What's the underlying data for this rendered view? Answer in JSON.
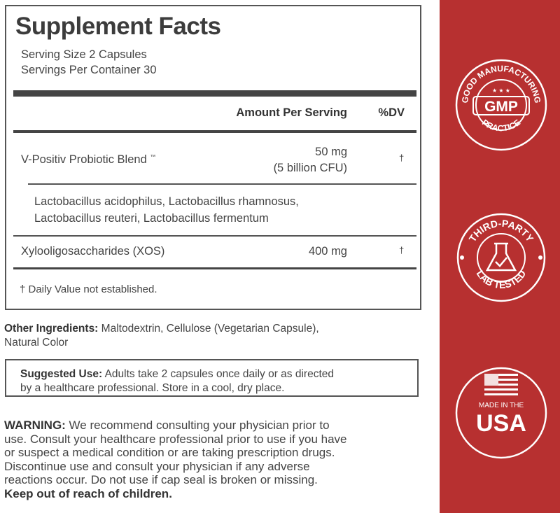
{
  "facts": {
    "title": "Supplement Facts",
    "serving_size": "Serving Size 2 Capsules",
    "servings_per_container": "Servings Per Container 30",
    "col_amount": "Amount Per Serving",
    "col_dv": "%DV",
    "rows": [
      {
        "name": "V-Positiv Probiotic Blend",
        "tm": "™",
        "amount": "50 mg",
        "amount2": "(5 billion CFU)",
        "dv": "†"
      },
      {
        "name": "Xylooligosaccharides (XOS)",
        "amount": "400 mg",
        "dv": "†"
      }
    ],
    "blend_line1": "Lactobacillus acidophilus, Lactobacillus rhamnosus,",
    "blend_line2": "Lactobacillus reuteri, Lactobacillus fermentum",
    "footnote": "† Daily Value not established."
  },
  "other_ingredients": {
    "label": "Other Ingredients:",
    "text": " Maltodextrin, Cellulose (Vegetarian Capsule),",
    "text2": "Natural Color"
  },
  "suggested_use": {
    "label": "Suggested Use:",
    "text": " Adults take 2 capsules once daily or as directed",
    "text2": "by a healthcare professional. Store in a cool, dry place."
  },
  "warning": {
    "label": "WARNING:",
    "lines": [
      " We recommend consulting your physician prior to",
      "use. Consult your healthcare professional prior to use if you have",
      "or suspect a medical condition or are taking prescription drugs.",
      "Discontinue use and consult your physician if any adverse",
      "reactions occur. Do not use if cap seal is broken or missing."
    ],
    "final": "Keep out of reach of children."
  },
  "badges": {
    "gmp": {
      "top": "GOOD MANUFACTURING",
      "center": "GMP",
      "bottom": "PRACTICE",
      "icon": "gmp-seal-icon"
    },
    "lab": {
      "top": "THIRD-PARTY",
      "bottom": "LAB TESTED",
      "icon": "flask-check-icon"
    },
    "usa": {
      "small": "MADE IN THE",
      "big": "USA",
      "icon": "us-flag-icon"
    }
  },
  "colors": {
    "panel": "#b73030",
    "text": "#3a3a3a"
  }
}
